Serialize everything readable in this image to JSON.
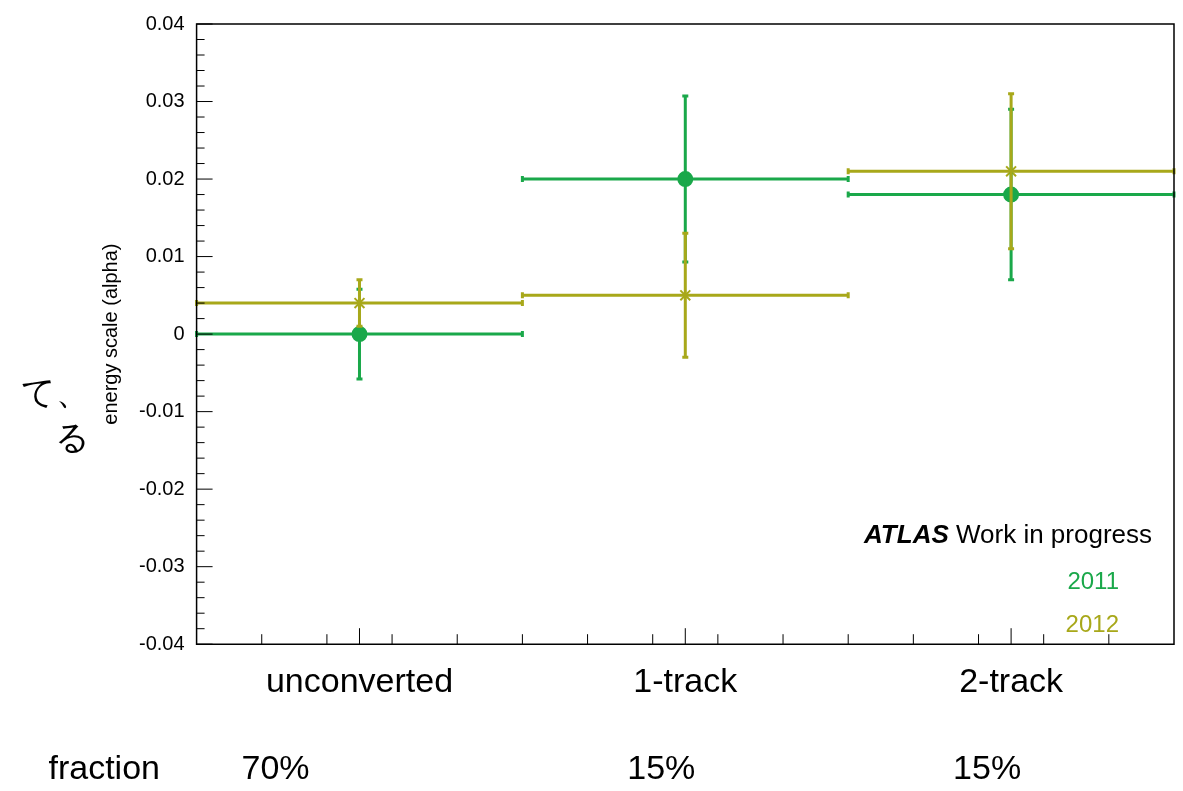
{
  "chart_data": {
    "type": "scatter",
    "ylabel": "energy scale (alpha)",
    "x": [
      0.5,
      1.5,
      2.5
    ],
    "xlim": [
      0,
      3
    ],
    "xticks": [
      {
        "value": 0.2,
        "label": null
      },
      {
        "value": 0.4,
        "label": null
      },
      {
        "value": 0.5,
        "label": "unconverted"
      },
      {
        "value": 0.6,
        "label": null
      },
      {
        "value": 0.8,
        "label": null
      },
      {
        "value": 1,
        "label": null
      },
      {
        "value": 1.2,
        "label": null
      },
      {
        "value": 1.4,
        "label": null
      },
      {
        "value": 1.5,
        "label": "1-track"
      },
      {
        "value": 1.6,
        "label": null
      },
      {
        "value": 1.8,
        "label": null
      },
      {
        "value": 2,
        "label": null
      },
      {
        "value": 2.2,
        "label": null
      },
      {
        "value": 2.4,
        "label": null
      },
      {
        "value": 2.5,
        "label": "2-track"
      },
      {
        "value": 2.6,
        "label": null
      },
      {
        "value": 2.8,
        "label": null
      }
    ],
    "ylim": [
      -0.04,
      0.04
    ],
    "yticks": [
      -0.04,
      -0.03,
      -0.02,
      -0.01,
      0,
      0.01,
      0.02,
      0.03,
      0.04
    ],
    "grid": false,
    "legend": "bottom right",
    "series": [
      {
        "name": "2011",
        "color": "#1aa84a",
        "marker": "circle",
        "values": [
          0,
          0.02,
          0.018
        ],
        "errors": [
          0.0058,
          0.0107,
          0.011
        ],
        "xerrors": [
          0.5,
          0.5,
          0.5
        ]
      },
      {
        "name": "2012",
        "color": "#a8a81a",
        "marker": "cross",
        "values": [
          0.004,
          0.005,
          0.021
        ],
        "errors": [
          0.003,
          0.008,
          0.01
        ],
        "xerrors": [
          0.5,
          0.5,
          0.5
        ]
      }
    ],
    "annotations": [
      "ATLAS Work in progress",
      "fraction",
      "70%",
      "15%",
      "15%",
      "て、",
      "る"
    ]
  }
}
